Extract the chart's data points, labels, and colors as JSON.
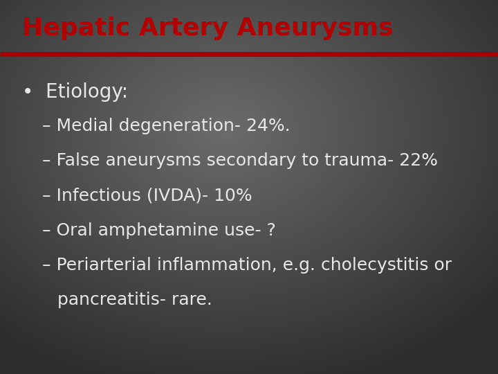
{
  "title": "Hepatic Artery Aneurysms",
  "title_color": "#b30000",
  "title_fontsize": 26,
  "divider_color": "#aa0000",
  "text_color": "#e8e8e8",
  "bullet": "•",
  "bullet_text": "Etiology:",
  "bullet_fontsize": 20,
  "items": [
    "– Medial degeneration- 24%.",
    "– False aneurysms secondary to trauma- 22%",
    "– Infectious (IVDA)- 10%",
    "– Oral amphetamine use- ?",
    "– Periarterial inflammation, e.g. cholecystitis or",
    "   pancreatitis- rare."
  ],
  "item_fontsize": 18,
  "bg_center": "#5a5a5a",
  "bg_edge": "#1e1e1e"
}
